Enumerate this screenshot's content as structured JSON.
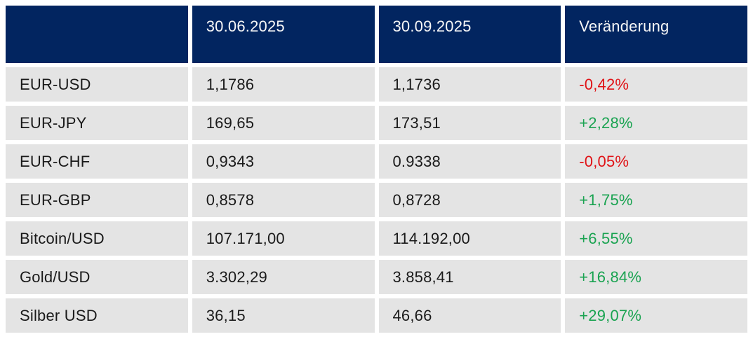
{
  "table": {
    "columns": [
      {
        "label": ""
      },
      {
        "label": "30.06.2025"
      },
      {
        "label": "30.09.2025"
      },
      {
        "label": "Veränderung"
      }
    ],
    "rows": [
      {
        "label": "EUR-USD",
        "v1": "1,1786",
        "v2": "1,1736",
        "change": "-0,42%",
        "direction": "down"
      },
      {
        "label": "EUR-JPY",
        "v1": "169,65",
        "v2": "173,51",
        "change": "+2,28%",
        "direction": "up"
      },
      {
        "label": "EUR-CHF",
        "v1": "0,9343",
        "v2": "0.9338",
        "change": "-0,05%",
        "direction": "down"
      },
      {
        "label": "EUR-GBP",
        "v1": "0,8578",
        "v2": "0,8728",
        "change": "+1,75%",
        "direction": "up"
      },
      {
        "label": "Bitcoin/USD",
        "v1": "107.171,00",
        "v2": "114.192,00",
        "change": "+6,55%",
        "direction": "up"
      },
      {
        "label": "Gold/USD",
        "v1": "3.302,29",
        "v2": "3.858,41",
        "change": "+16,84%",
        "direction": "up"
      },
      {
        "label": "Silber USD",
        "v1": "36,15",
        "v2": "46,66",
        "change": "+29,07%",
        "direction": "up"
      }
    ],
    "colors": {
      "header_bg": "#022560",
      "header_text": "#f7f7f7",
      "row_bg": "#e4e4e4",
      "text": "#1a1a1a",
      "positive": "#1aa351",
      "negative": "#e01216",
      "background": "#ffffff"
    }
  }
}
